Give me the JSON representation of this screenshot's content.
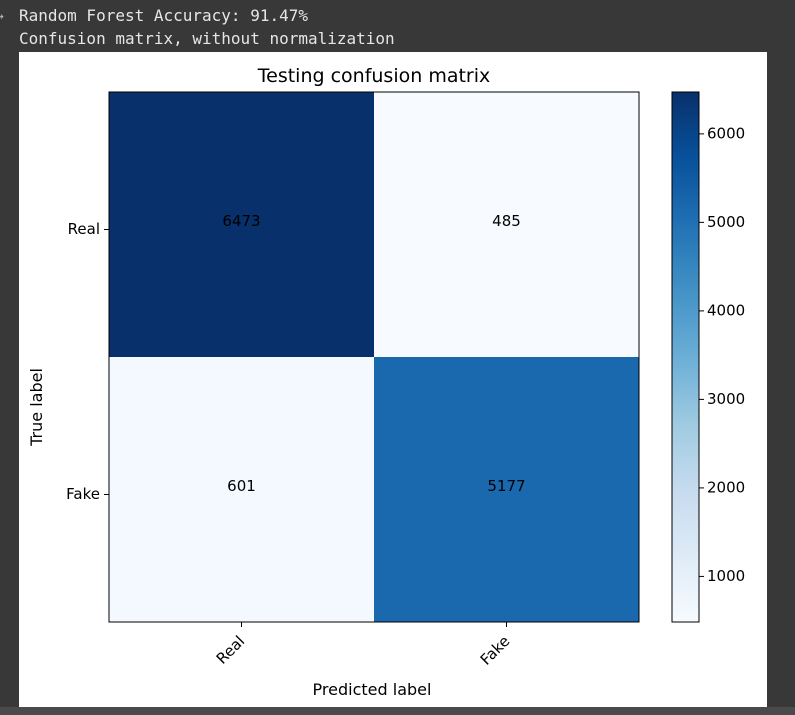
{
  "output": {
    "line1": "Random Forest Accuracy: 91.47%",
    "line2": "Confusion matrix, without normalization"
  },
  "chart_data": {
    "type": "heatmap",
    "title": "Testing confusion matrix",
    "xlabel": "Predicted label",
    "ylabel": "True label",
    "x_categories": [
      "Real",
      "Fake"
    ],
    "y_categories": [
      "Real",
      "Fake"
    ],
    "values": [
      [
        6473,
        485
      ],
      [
        601,
        5177
      ]
    ],
    "colormap": "Blues",
    "colorbar": {
      "min": 485,
      "max": 6473,
      "ticks": [
        1000,
        2000,
        3000,
        4000,
        5000,
        6000
      ]
    },
    "grid": false
  }
}
